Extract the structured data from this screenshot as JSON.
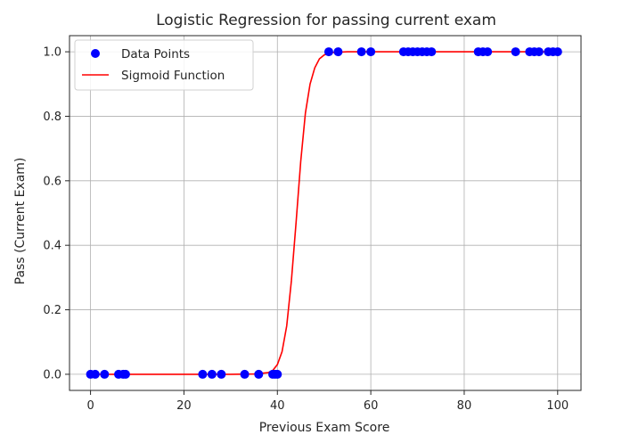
{
  "chart_data": {
    "type": "scatter",
    "title": "Logistic Regression for passing current exam",
    "xlabel": "Previous Exam Score",
    "ylabel": "Pass (Current Exam)",
    "xlim": [
      -4.5,
      105
    ],
    "ylim": [
      -0.05,
      1.05
    ],
    "xticks": [
      0,
      20,
      40,
      60,
      80,
      100
    ],
    "yticks": [
      0.0,
      0.2,
      0.4,
      0.6,
      0.8,
      1.0
    ],
    "xtick_labels": [
      "0",
      "20",
      "40",
      "60",
      "80",
      "100"
    ],
    "ytick_labels": [
      "0.0",
      "0.2",
      "0.4",
      "0.6",
      "0.8",
      "1.0"
    ],
    "grid": true,
    "legend_position": "top-left",
    "series": [
      {
        "name": "Data Points",
        "kind": "scatter",
        "color": "#0000ff",
        "points": [
          [
            0,
            0
          ],
          [
            1,
            0
          ],
          [
            3,
            0
          ],
          [
            6,
            0
          ],
          [
            7,
            0
          ],
          [
            7.5,
            0
          ],
          [
            24,
            0
          ],
          [
            26,
            0
          ],
          [
            28,
            0
          ],
          [
            33,
            0
          ],
          [
            36,
            0
          ],
          [
            39,
            0
          ],
          [
            39.5,
            0
          ],
          [
            40,
            0
          ],
          [
            51,
            1
          ],
          [
            53,
            1
          ],
          [
            58,
            1
          ],
          [
            60,
            1
          ],
          [
            67,
            1
          ],
          [
            68,
            1
          ],
          [
            69,
            1
          ],
          [
            70,
            1
          ],
          [
            71,
            1
          ],
          [
            72,
            1
          ],
          [
            73,
            1
          ],
          [
            83,
            1
          ],
          [
            84,
            1
          ],
          [
            85,
            1
          ],
          [
            91,
            1
          ],
          [
            94,
            1
          ],
          [
            95,
            1
          ],
          [
            96,
            1
          ],
          [
            98,
            1
          ],
          [
            99,
            1
          ],
          [
            100,
            1
          ]
        ]
      },
      {
        "name": "Sigmoid Function",
        "kind": "line",
        "color": "#ff0000",
        "x": [
          0,
          10,
          20,
          30,
          35,
          38,
          39,
          40,
          41,
          42,
          43,
          44,
          45,
          46,
          47,
          48,
          49,
          50,
          51,
          52,
          55,
          60,
          70,
          80,
          90,
          100
        ],
        "y": [
          0.0,
          0.0,
          0.0,
          0.0,
          0.001,
          0.005,
          0.012,
          0.03,
          0.07,
          0.15,
          0.29,
          0.47,
          0.66,
          0.81,
          0.9,
          0.95,
          0.978,
          0.99,
          0.996,
          0.998,
          1.0,
          1.0,
          1.0,
          1.0,
          1.0,
          1.0
        ]
      }
    ]
  }
}
